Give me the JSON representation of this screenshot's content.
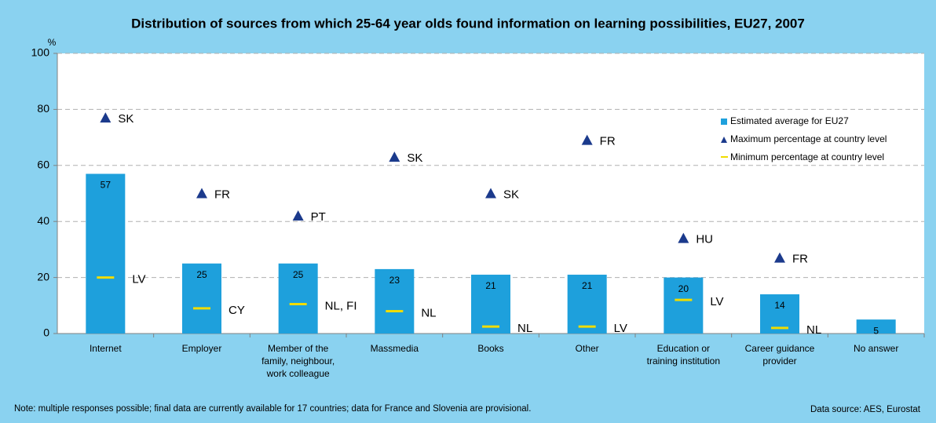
{
  "chart_data": {
    "type": "bar",
    "title": "Distribution of sources from which 25-64 year olds found information on learning possibilities, EU27, 2007",
    "y_label": "%",
    "categories": [
      [
        "Internet"
      ],
      [
        "Employer"
      ],
      [
        "Member of the",
        "family, neighbour,",
        "work colleague"
      ],
      [
        "Massmedia"
      ],
      [
        "Books"
      ],
      [
        "Other"
      ],
      [
        "Education or",
        "training institution"
      ],
      [
        "Career guidance",
        "provider"
      ],
      [
        "No answer"
      ]
    ],
    "series": [
      {
        "name": "Estimated average for EU27",
        "color": "#1ea0dc",
        "values": [
          57,
          25,
          25,
          23,
          21,
          21,
          20,
          14,
          5
        ]
      },
      {
        "name": "Maximum percentage at country level",
        "color": "#1b3a8c",
        "values": [
          77,
          50,
          42,
          63,
          50,
          69,
          34,
          27,
          null
        ],
        "point_labels": [
          "SK",
          "FR",
          "PT",
          "SK",
          "SK",
          "FR",
          "HU",
          "FR",
          null
        ]
      },
      {
        "name": "Minimum percentage at country level",
        "color": "#f0dc00",
        "values": [
          20,
          9,
          10.5,
          8,
          2.5,
          2.5,
          12,
          2,
          null
        ],
        "point_labels": [
          "LV",
          "CY",
          "NL, FI",
          "NL",
          "NL",
          "LV",
          "LV",
          "NL",
          null
        ]
      }
    ],
    "ylim": [
      0,
      100
    ],
    "yticks": [
      0,
      20,
      40,
      60,
      80,
      100
    ],
    "grid": true,
    "note": "Note: multiple responses possible; final data are currently available for 17 countries; data for France and Slovenia are provisional.",
    "source": "Data source: AES, Eurostat"
  }
}
